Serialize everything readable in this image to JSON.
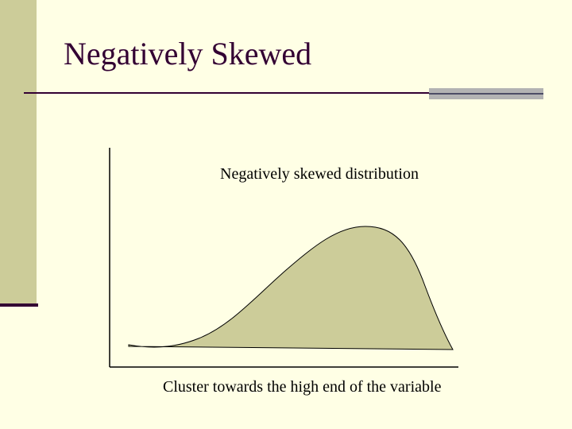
{
  "slide": {
    "title": "Negatively Skewed",
    "graph_caption": "Negatively skewed distribution",
    "footer_caption": "Cluster towards the high end of the variable"
  },
  "theme": {
    "background": "#ffffe5",
    "accent_olive": "#cccc99",
    "title_color": "#330033",
    "curve_fill": "#cccc99"
  },
  "diagram": {
    "shape": "negatively-skewed-distribution-curve",
    "peak_side": "right",
    "tail_side": "left"
  }
}
